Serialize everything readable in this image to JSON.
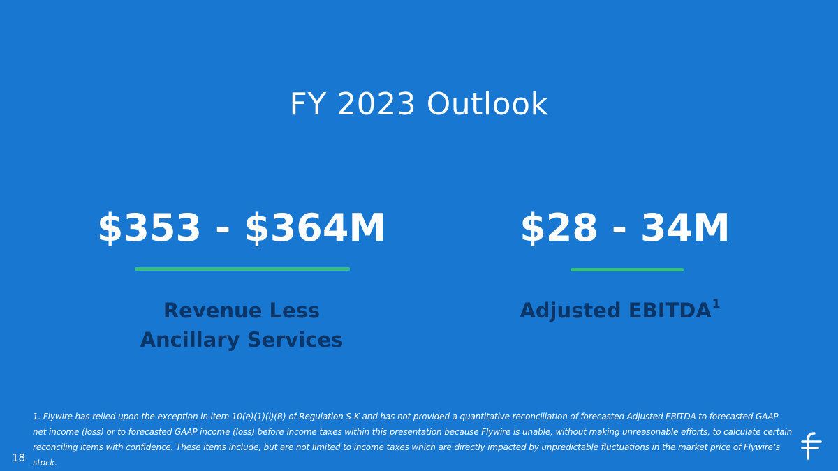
{
  "slide": {
    "title": "FY 2023 Outlook",
    "page_number": "18",
    "background_color": "#1777d1",
    "accent_color": "#36c07a",
    "label_color": "#0a3566"
  },
  "metrics": [
    {
      "value": "$353 - $364M",
      "label_line_1": "Revenue Less",
      "label_line_2": "Ancillary Services"
    },
    {
      "value": "$28 - 34M",
      "label": "Adjusted EBITDA",
      "footnote_marker": "1"
    }
  ],
  "footnote": {
    "text": "1. Flywire has relied upon the exception in item 10(e)(1)(i)(B) of Regulation S-K and has not provided a quantitative reconciliation of forecasted Adjusted EBITDA to forecasted GAAP net income (loss) or to forecasted GAAP income (loss) before income taxes within this presentation because Flywire is unable, without making unreasonable efforts, to calculate certain reconciling items with confidence. These items include, but are not limited to income taxes which are directly impacted by unpredictable fluctuations in the market price of Flywire’s stock."
  },
  "logo": {
    "icon": "flywire-logo-icon"
  }
}
